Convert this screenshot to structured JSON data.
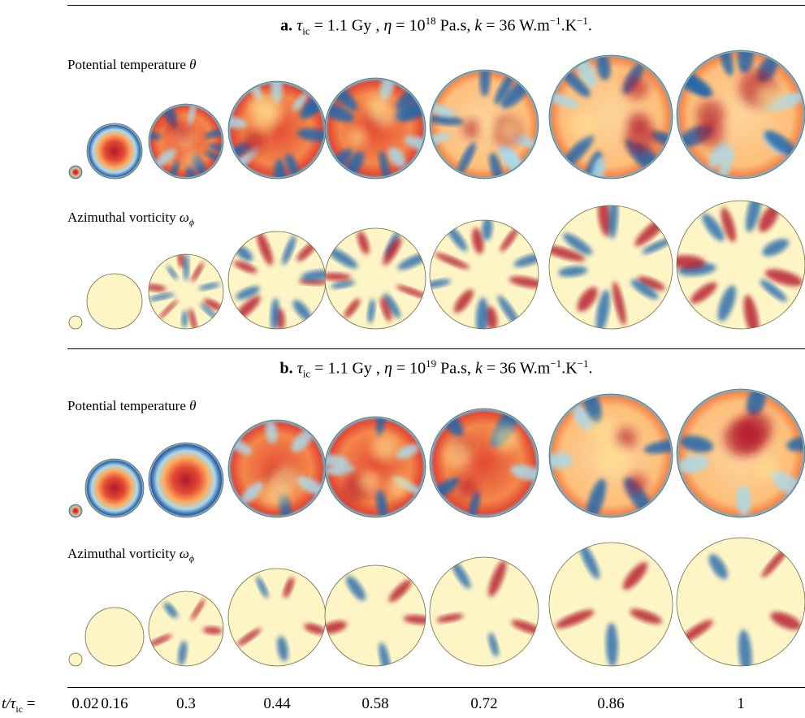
{
  "panels": [
    {
      "letter": "a.",
      "tau_symbol": "τ",
      "tau_sub": "ic",
      "tau_value": "= 1.1 Gy ,",
      "eta_symbol": "η",
      "eta_value": "= 10",
      "eta_exp": "18",
      "eta_unit": "Pa.s,",
      "k_symbol": "k",
      "k_value": "= 36 W.m",
      "k_exp1": "−1",
      "k_mid": ".K",
      "k_exp2": "−1",
      "k_end": ".",
      "rows": {
        "temperature": {
          "label": "Potential temperature",
          "symbol": "θ"
        },
        "vorticity": {
          "label": "Azimuthal vorticity",
          "symbol": "ω",
          "symbol_sub": "ϕ"
        }
      }
    },
    {
      "letter": "b.",
      "tau_symbol": "τ",
      "tau_sub": "ic",
      "tau_value": "= 1.1 Gy ,",
      "eta_symbol": "η",
      "eta_value": "= 10",
      "eta_exp": "19",
      "eta_unit": "Pa.s,",
      "k_symbol": "k",
      "k_value": "= 36 W.m",
      "k_exp1": "−1",
      "k_mid": ".K",
      "k_exp2": "−1",
      "k_end": ".",
      "rows": {
        "temperature": {
          "label": "Potential temperature",
          "symbol": "θ"
        },
        "vorticity": {
          "label": "Azimuthal vorticity",
          "symbol": "ω",
          "symbol_sub": "ϕ"
        }
      }
    }
  ],
  "time_axis": {
    "label_var": "t/τ",
    "label_sub": "ic",
    "label_eq": "=",
    "ticks": [
      "0.02",
      "0.16",
      "0.3",
      "0.44",
      "0.58",
      "0.72",
      "0.86",
      "1"
    ]
  },
  "colormap": {
    "hot": "#b2182b",
    "mid": "#fdf5c6",
    "cold": "#2166ac",
    "cold_rim": "#1f3f8f"
  }
}
